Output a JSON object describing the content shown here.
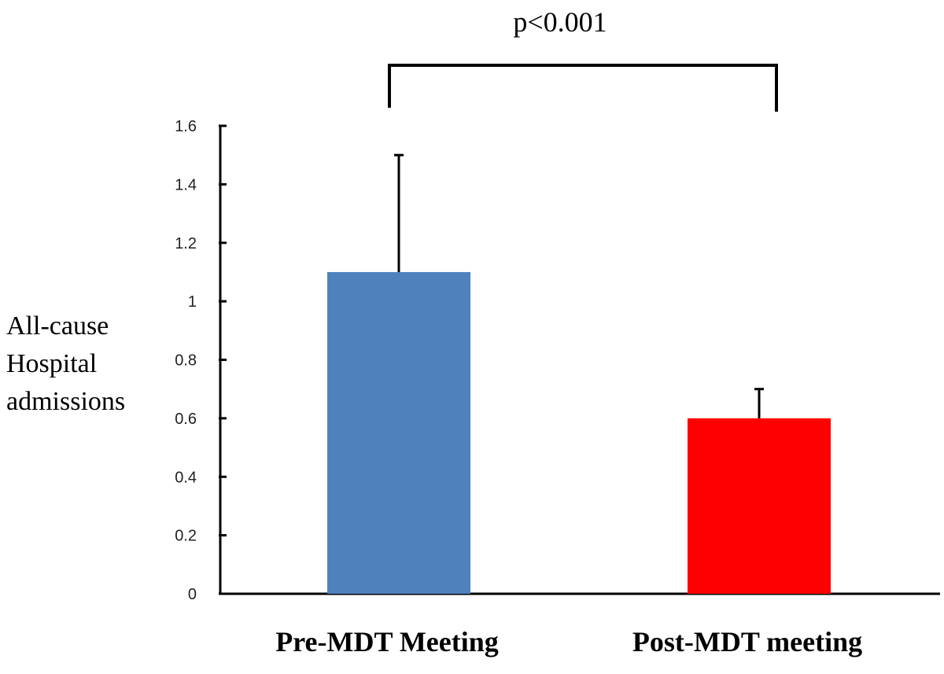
{
  "chart_data": {
    "type": "bar",
    "categories": [
      "Pre-MDT Meeting",
      "Post-MDT meeting"
    ],
    "values": [
      1.1,
      0.6
    ],
    "error_upper": [
      1.5,
      0.7
    ],
    "colors": [
      "#4f81bd",
      "#ff0000"
    ],
    "ylabel_lines": [
      "All-cause",
      "Hospital",
      "admissions"
    ],
    "ylim": [
      0,
      1.6
    ],
    "yticks": [
      0,
      0.2,
      0.4,
      0.6,
      0.8,
      1,
      1.2,
      1.4,
      1.6
    ],
    "ytick_labels": [
      "0",
      "0.2",
      "0.4",
      "0.6",
      "0.8",
      "1",
      "1.2",
      "1.4",
      "1.6"
    ],
    "annotation": "p<0.001",
    "grid": false,
    "legend": "none"
  }
}
